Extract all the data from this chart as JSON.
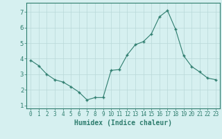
{
  "x": [
    0,
    1,
    2,
    3,
    4,
    5,
    6,
    7,
    8,
    9,
    10,
    11,
    12,
    13,
    14,
    15,
    16,
    17,
    18,
    19,
    20,
    21,
    22,
    23
  ],
  "y": [
    3.9,
    3.55,
    3.0,
    2.65,
    2.5,
    2.2,
    1.85,
    1.35,
    1.5,
    1.5,
    3.25,
    3.3,
    4.25,
    4.9,
    5.1,
    5.6,
    6.7,
    7.1,
    5.9,
    4.2,
    3.5,
    3.15,
    2.75,
    2.65
  ],
  "line_color": "#2e7d6e",
  "marker": "+",
  "marker_size": 3,
  "bg_color": "#d6f0f0",
  "grid_color": "#b8d8d8",
  "xlabel": "Humidex (Indice chaleur)",
  "ylim": [
    0.8,
    7.6
  ],
  "xlim": [
    -0.5,
    23.5
  ],
  "yticks": [
    1,
    2,
    3,
    4,
    5,
    6,
    7
  ],
  "xticks": [
    0,
    1,
    2,
    3,
    4,
    5,
    6,
    7,
    8,
    9,
    10,
    11,
    12,
    13,
    14,
    15,
    16,
    17,
    18,
    19,
    20,
    21,
    22,
    23
  ],
  "tick_color": "#2e7d6e",
  "label_color": "#2e7d6e",
  "xlabel_fontsize": 7,
  "tick_fontsize": 5.5,
  "ytick_fontsize": 6.5
}
